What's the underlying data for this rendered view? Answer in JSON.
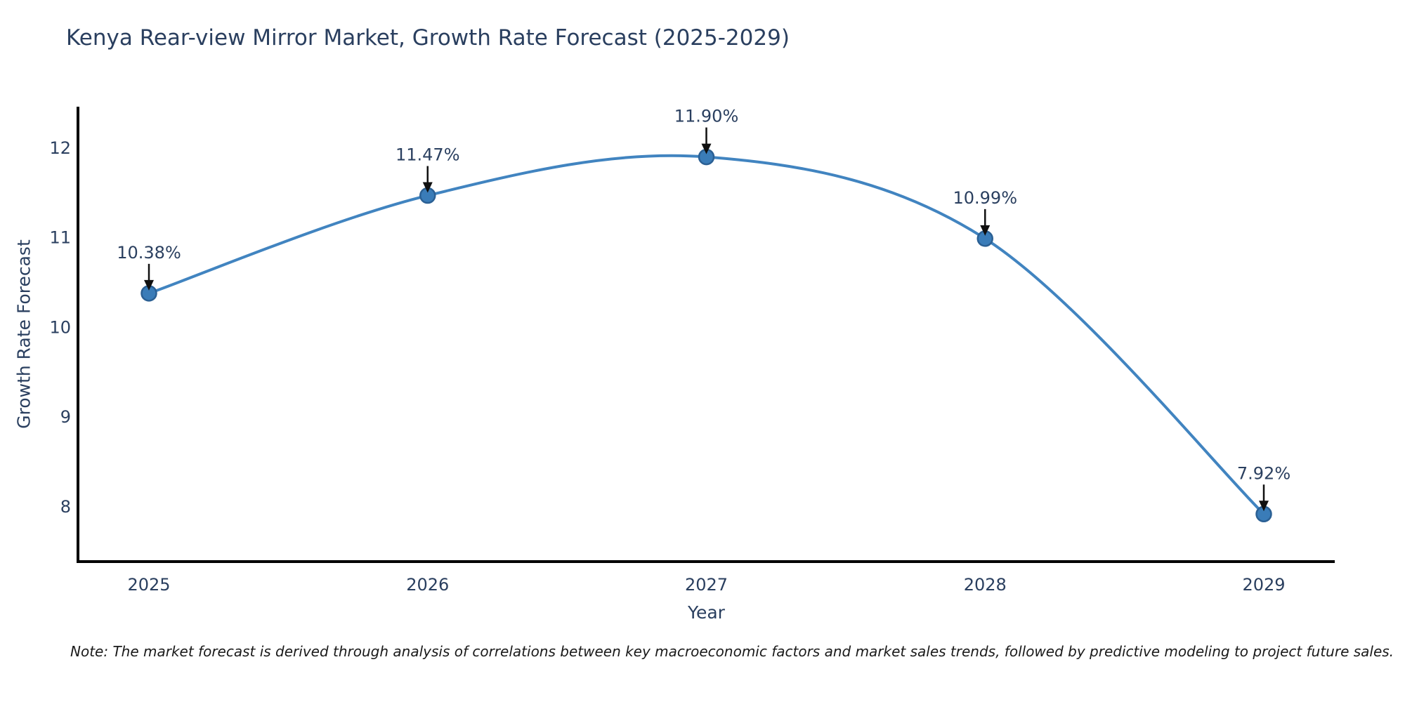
{
  "note": "Note: The market forecast is derived through analysis of correlations between key macroeconomic factors and market sales trends, followed by predictive modeling to project future sales.",
  "chart_data": {
    "type": "line",
    "title": "Kenya Rear-view Mirror Market, Growth Rate Forecast (2025-2029)",
    "xlabel": "Year",
    "ylabel": "Growth Rate Forecast",
    "x": [
      2025,
      2026,
      2027,
      2028,
      2029
    ],
    "values": [
      10.38,
      11.47,
      11.9,
      10.99,
      7.92
    ],
    "point_labels": [
      "10.38%",
      "11.47%",
      "11.90%",
      "10.99%",
      "7.92%"
    ],
    "yticks": [
      8,
      9,
      10,
      11,
      12
    ],
    "ylim": [
      7.39,
      12.46
    ],
    "line_shape": "spline",
    "grid": false,
    "legend_position": "none",
    "colors": {
      "line": "#4184c0",
      "marker_fill": "#3a7cb8",
      "marker_edge": "#2b6094",
      "axis": "#000000",
      "text": "#2a3f5f",
      "arrow": "#101010",
      "note_text": "#1a1a1a",
      "background": "#ffffff"
    }
  }
}
